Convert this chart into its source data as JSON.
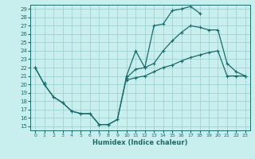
{
  "xlabel": "Humidex (Indice chaleur)",
  "bg_color": "#c8eeee",
  "grid_color": "#99cccc",
  "line_color": "#1a6b6b",
  "xlim": [
    -0.5,
    23.5
  ],
  "ylim": [
    14.5,
    29.5
  ],
  "xticks": [
    0,
    1,
    2,
    3,
    4,
    5,
    6,
    7,
    8,
    9,
    10,
    11,
    12,
    13,
    14,
    15,
    16,
    17,
    18,
    19,
    20,
    21,
    22,
    23
  ],
  "yticks": [
    15,
    16,
    17,
    18,
    19,
    20,
    21,
    22,
    23,
    24,
    25,
    26,
    27,
    28,
    29
  ],
  "line1_y": [
    22,
    20,
    18.5,
    17.8,
    16.8,
    16.5,
    16.5,
    15.2,
    15.2,
    15.8,
    21.0,
    24.0,
    22.0,
    27.0,
    27.2,
    28.8,
    29.0,
    29.3,
    28.5,
    null,
    null,
    null,
    null,
    null
  ],
  "line2_y": [
    22,
    20,
    18.5,
    17.8,
    16.8,
    16.5,
    16.5,
    15.2,
    15.2,
    15.8,
    20.8,
    21.8,
    22.0,
    22.5,
    24.0,
    25.2,
    26.2,
    27.0,
    26.8,
    26.5,
    26.5,
    22.5,
    21.5,
    21.0
  ],
  "line3_y": [
    null,
    20.2,
    null,
    null,
    null,
    null,
    null,
    null,
    null,
    null,
    20.5,
    20.8,
    21.0,
    21.5,
    22.0,
    22.3,
    22.8,
    23.2,
    23.5,
    23.8,
    24.0,
    21.0,
    21.0,
    21.0
  ]
}
